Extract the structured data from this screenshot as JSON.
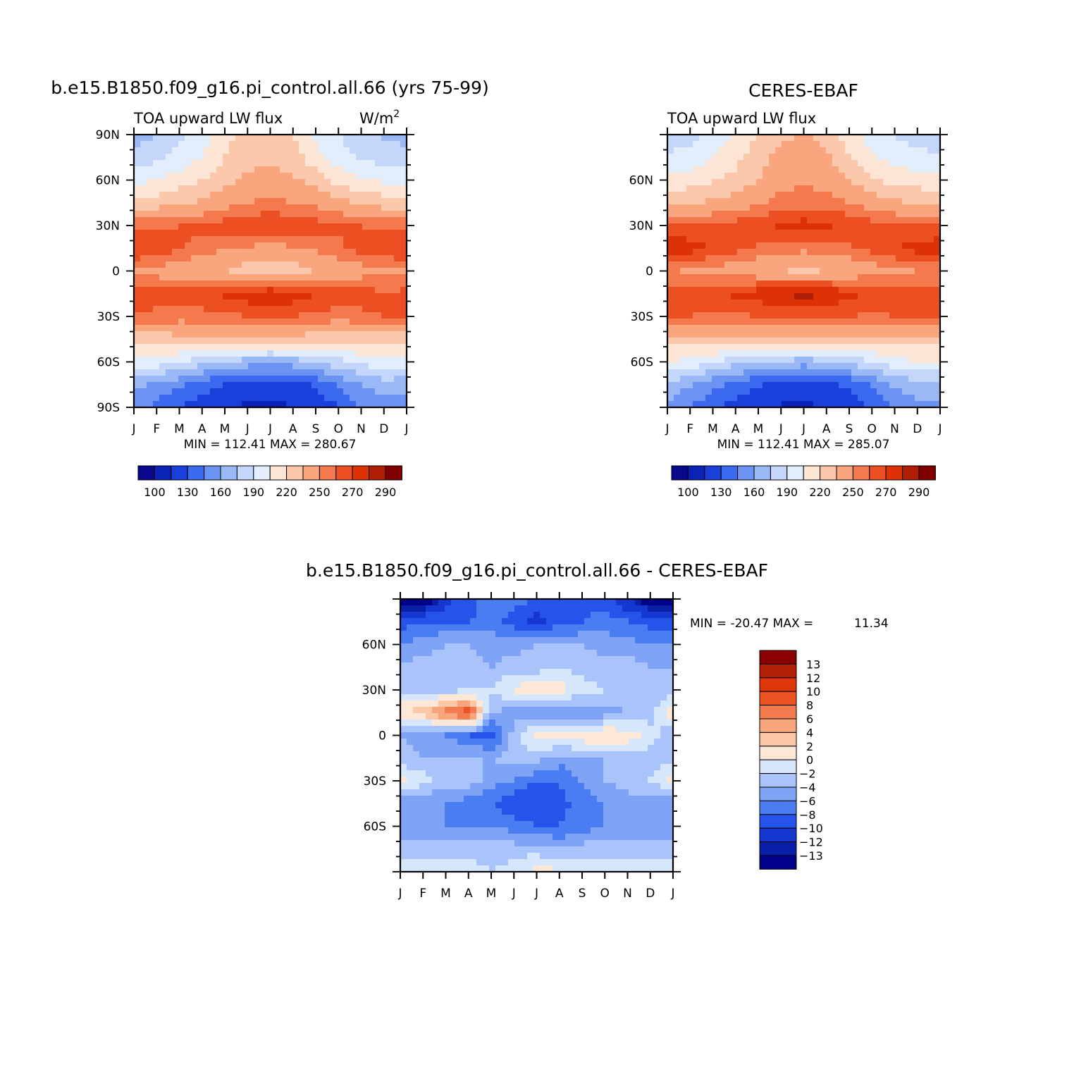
{
  "page": {
    "top_left_title": "b.e15.B1850.f09_g16.pi_control.all.66 (yrs 75-99)",
    "top_right_title": "CERES-EBAF",
    "bottom_title": "b.e15.B1850.f09_g16.pi_control.all.66 - CERES-EBAF"
  },
  "chart_data": [
    {
      "id": "model",
      "type": "heatmap",
      "title": "b.e15.B1850.f09_g16.pi_control.all.66 (yrs 75-99)",
      "subtitle_left": "TOA upward LW flux",
      "units": "W/m",
      "units_superscript": "2",
      "x_ticks": [
        "J",
        "F",
        "M",
        "A",
        "M",
        "J",
        "J",
        "A",
        "S",
        "O",
        "N",
        "D",
        "J"
      ],
      "y_ticks": [
        "90N",
        "60N",
        "30N",
        "0",
        "30S",
        "60S",
        "90S"
      ],
      "y_range": [
        -90,
        90
      ],
      "stats": "MIN = 112.41 MAX = 280.67",
      "colorbar": {
        "levels": [
          100,
          115,
          130,
          145,
          160,
          175,
          190,
          205,
          220,
          235,
          250,
          260,
          270,
          280,
          290
        ],
        "labels": [
          "100",
          "130",
          "160",
          "190",
          "220",
          "250",
          "270",
          "290"
        ],
        "colors": [
          "#08088a",
          "#0a22b5",
          "#1a40dc",
          "#3b6af0",
          "#6a93f2",
          "#9bb8f6",
          "#c4d6fa",
          "#e2eefc",
          "#fde5d6",
          "#fcc8ab",
          "#f9a57e",
          "#f47a4d",
          "#ec4f22",
          "#dc3205",
          "#b01e06",
          "#800000"
        ]
      },
      "field": {
        "lat_rows": [
          90,
          75,
          60,
          45,
          30,
          15,
          0,
          -15,
          -30,
          -45,
          -60,
          -75,
          -90
        ],
        "month_cols": [
          "J",
          "F",
          "M",
          "A",
          "M",
          "J",
          "J",
          "A",
          "S",
          "O",
          "N",
          "D",
          "J"
        ],
        "values": [
          [
            170,
            175,
            185,
            195,
            215,
            225,
            225,
            220,
            200,
            190,
            180,
            172,
            170
          ],
          [
            180,
            185,
            195,
            205,
            220,
            230,
            232,
            228,
            210,
            198,
            188,
            182,
            180
          ],
          [
            200,
            205,
            212,
            220,
            230,
            238,
            240,
            238,
            228,
            215,
            208,
            202,
            200
          ],
          [
            225,
            228,
            232,
            238,
            245,
            250,
            252,
            250,
            246,
            240,
            232,
            228,
            225
          ],
          [
            258,
            258,
            260,
            262,
            265,
            268,
            270,
            268,
            265,
            262,
            260,
            258,
            258
          ],
          [
            270,
            268,
            262,
            256,
            250,
            248,
            246,
            248,
            252,
            258,
            264,
            268,
            270
          ],
          [
            250,
            245,
            240,
            238,
            236,
            228,
            222,
            228,
            236,
            240,
            244,
            248,
            250
          ],
          [
            262,
            264,
            266,
            268,
            272,
            276,
            280,
            276,
            270,
            266,
            264,
            262,
            262
          ],
          [
            260,
            258,
            256,
            256,
            258,
            260,
            260,
            260,
            258,
            256,
            258,
            260,
            260
          ],
          [
            225,
            228,
            230,
            232,
            232,
            232,
            230,
            230,
            228,
            228,
            226,
            225,
            225
          ],
          [
            200,
            198,
            190,
            180,
            172,
            168,
            166,
            168,
            175,
            185,
            195,
            200,
            200
          ],
          [
            165,
            158,
            148,
            138,
            130,
            125,
            122,
            125,
            132,
            145,
            160,
            168,
            165
          ],
          [
            150,
            140,
            130,
            120,
            115,
            112,
            112,
            114,
            118,
            130,
            145,
            152,
            150
          ]
        ]
      }
    },
    {
      "id": "obs",
      "type": "heatmap",
      "title": "CERES-EBAF",
      "subtitle_left": "TOA upward LW flux",
      "x_ticks": [
        "J",
        "F",
        "M",
        "A",
        "M",
        "J",
        "J",
        "A",
        "S",
        "O",
        "N",
        "D",
        "J"
      ],
      "y_ticks": [
        "60N",
        "30N",
        "0",
        "30S",
        "60S"
      ],
      "y_range": [
        -90,
        90
      ],
      "stats": "MIN = 112.41 MAX = 285.07",
      "colorbar": {
        "levels": [
          100,
          115,
          130,
          145,
          160,
          175,
          190,
          205,
          220,
          235,
          250,
          260,
          270,
          280,
          290
        ],
        "labels": [
          "100",
          "130",
          "160",
          "190",
          "220",
          "250",
          "270",
          "290"
        ],
        "colors": [
          "#08088a",
          "#0a22b5",
          "#1a40dc",
          "#3b6af0",
          "#6a93f2",
          "#9bb8f6",
          "#c4d6fa",
          "#e2eefc",
          "#fde5d6",
          "#fcc8ab",
          "#f9a57e",
          "#f47a4d",
          "#ec4f22",
          "#dc3205",
          "#b01e06",
          "#800000"
        ]
      },
      "field": {
        "lat_rows": [
          90,
          75,
          60,
          45,
          30,
          15,
          0,
          -15,
          -30,
          -45,
          -60,
          -75,
          -90
        ],
        "month_cols": [
          "J",
          "F",
          "M",
          "A",
          "M",
          "J",
          "J",
          "A",
          "S",
          "O",
          "N",
          "D",
          "J"
        ],
        "values": [
          [
            182,
            185,
            195,
            205,
            220,
            232,
            236,
            230,
            210,
            198,
            188,
            184,
            182
          ],
          [
            192,
            195,
            205,
            215,
            228,
            240,
            245,
            238,
            220,
            208,
            198,
            194,
            192
          ],
          [
            210,
            212,
            218,
            225,
            235,
            245,
            248,
            245,
            235,
            222,
            215,
            212,
            210
          ],
          [
            232,
            234,
            238,
            242,
            248,
            254,
            256,
            254,
            250,
            244,
            238,
            234,
            232
          ],
          [
            262,
            262,
            263,
            265,
            268,
            272,
            275,
            272,
            268,
            265,
            263,
            262,
            262
          ],
          [
            276,
            275,
            270,
            264,
            258,
            255,
            253,
            255,
            258,
            264,
            270,
            274,
            276
          ],
          [
            252,
            248,
            244,
            242,
            240,
            236,
            232,
            236,
            240,
            244,
            248,
            250,
            252
          ],
          [
            264,
            266,
            268,
            272,
            276,
            280,
            284,
            280,
            274,
            268,
            266,
            264,
            264
          ],
          [
            262,
            260,
            258,
            258,
            260,
            262,
            262,
            262,
            260,
            258,
            260,
            262,
            262
          ],
          [
            228,
            230,
            232,
            234,
            235,
            235,
            234,
            234,
            232,
            230,
            230,
            228,
            228
          ],
          [
            205,
            200,
            192,
            182,
            175,
            170,
            168,
            170,
            178,
            188,
            198,
            205,
            205
          ],
          [
            170,
            162,
            150,
            140,
            132,
            126,
            124,
            126,
            134,
            148,
            162,
            170,
            170
          ],
          [
            155,
            145,
            132,
            122,
            116,
            113,
            112,
            115,
            120,
            132,
            148,
            156,
            155
          ]
        ]
      }
    },
    {
      "id": "diff",
      "type": "heatmap",
      "title": "b.e15.B1850.f09_g16.pi_control.all.66 - CERES-EBAF",
      "x_ticks": [
        "J",
        "F",
        "M",
        "A",
        "M",
        "J",
        "J",
        "A",
        "S",
        "O",
        "N",
        "D",
        "J"
      ],
      "y_ticks": [
        "60N",
        "30N",
        "0",
        "30S",
        "60S"
      ],
      "y_range": [
        -90,
        90
      ],
      "stats_min_label": "MIN = -20.47 MAX =",
      "stats_max_value": "11.34",
      "colorbar": {
        "levels": [
          -13,
          -12,
          -10,
          -8,
          -6,
          -4,
          -2,
          0,
          2,
          4,
          6,
          8,
          10,
          12,
          13
        ],
        "labels": [
          "13",
          "12",
          "10",
          "8",
          "6",
          "4",
          "2",
          "0",
          "-2",
          "-4",
          "-6",
          "-8",
          "-10",
          "-12",
          "-13"
        ],
        "colors": [
          "#00008b",
          "#0a1fa8",
          "#1636d0",
          "#2653ea",
          "#4a7cf2",
          "#7fa4f6",
          "#a9c4fa",
          "#d6e6fb",
          "#fde8d8",
          "#fcc7a6",
          "#f9a57c",
          "#f47b4e",
          "#ec5426",
          "#e0360c",
          "#b42008",
          "#8b0000"
        ]
      },
      "field": {
        "lat_rows": [
          90,
          75,
          60,
          45,
          30,
          15,
          0,
          -15,
          -30,
          -45,
          -60,
          -75,
          -90
        ],
        "month_cols": [
          "J",
          "F",
          "M",
          "A",
          "M",
          "J",
          "J",
          "A",
          "S",
          "O",
          "N",
          "D",
          "J"
        ],
        "values": [
          [
            -16,
            -15,
            -11,
            -9,
            -7,
            -7,
            -8,
            -8,
            -9,
            -9,
            -12,
            -15,
            -16
          ],
          [
            -9,
            -8,
            -8,
            -8,
            -7,
            -9,
            -11,
            -9,
            -8,
            -7,
            -8,
            -9,
            -9
          ],
          [
            -6,
            -5,
            -4,
            -4,
            -5,
            -5,
            -4,
            -4,
            -4,
            -5,
            -5,
            -6,
            -6
          ],
          [
            -4,
            -3,
            -3,
            -3,
            -4,
            -3,
            -3,
            -2,
            -3,
            -3,
            -3,
            -4,
            -4
          ],
          [
            -3,
            -3,
            -3,
            -2,
            -2,
            0.5,
            1.5,
            1,
            -1,
            -2,
            -2,
            -3,
            -3
          ],
          [
            2,
            3,
            7,
            10,
            -4,
            -5,
            -6,
            -5,
            -6,
            -5,
            -4,
            -3,
            2
          ],
          [
            -4,
            -5,
            -6,
            -8,
            -9,
            -3,
            0.5,
            1,
            1.5,
            2,
            1.5,
            -1,
            -4
          ],
          [
            -3,
            -4,
            -4,
            -4,
            -4,
            -3,
            -3,
            -5,
            -4,
            -4,
            -3,
            -3,
            -3
          ],
          [
            1,
            -1,
            -3,
            -3,
            -5,
            -6,
            -8,
            -8,
            -6,
            -4,
            -3,
            -2,
            1
          ],
          [
            -6,
            -6,
            -6,
            -7,
            -8,
            -10,
            -10,
            -9,
            -7,
            -6,
            -5,
            -5,
            -6
          ],
          [
            -6,
            -6,
            -6,
            -6,
            -6,
            -7,
            -8,
            -8,
            -7,
            -6,
            -5,
            -5,
            -6
          ],
          [
            -3,
            -3,
            -3,
            -3,
            -3,
            -3,
            -3,
            -4,
            -3,
            -3,
            -3,
            -3,
            -3
          ],
          [
            -1,
            -1,
            -1,
            -1,
            -2,
            -1,
            1,
            0.5,
            -1,
            -1,
            -1,
            -1,
            -1
          ]
        ]
      }
    }
  ]
}
